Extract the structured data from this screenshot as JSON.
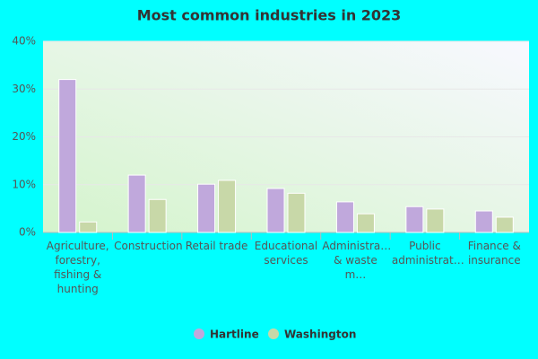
{
  "chart_data": {
    "type": "bar",
    "title": "Most common industries in 2023",
    "categories": [
      "Agriculture, forestry, fishing & hunting",
      "Construction",
      "Retail trade",
      "Educational services",
      "Administra… & waste m…",
      "Public administrat…",
      "Finance & insurance"
    ],
    "series": [
      {
        "name": "Hartline",
        "color": "#c0a8dc",
        "values": [
          32,
          12,
          10.1,
          9.2,
          6.4,
          5.4,
          4.5
        ]
      },
      {
        "name": "Washington",
        "color": "#c8d8a8",
        "values": [
          2.2,
          6.9,
          10.9,
          8.2,
          3.9,
          4.9,
          3.2
        ]
      }
    ],
    "ylim": [
      0,
      40
    ],
    "yticks": [
      {
        "value": 0,
        "label": "0%"
      },
      {
        "value": 10,
        "label": "10%"
      },
      {
        "value": 20,
        "label": "20%"
      },
      {
        "value": 30,
        "label": "30%"
      },
      {
        "value": 40,
        "label": "40%"
      }
    ],
    "grid": true
  }
}
